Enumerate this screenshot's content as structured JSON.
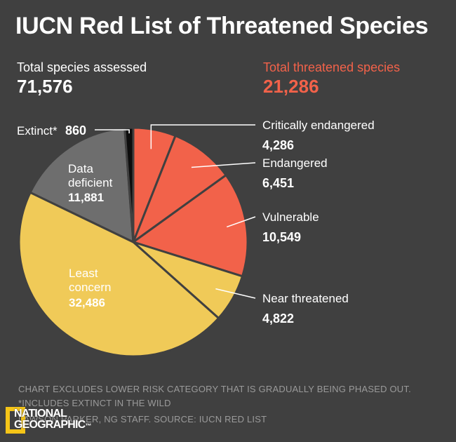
{
  "title": "IUCN Red List of Threatened Species",
  "totals": {
    "assessed_label": "Total species assessed",
    "assessed_value": "71,576",
    "threatened_label": "Total threatened species",
    "threatened_value": "21,286"
  },
  "colors": {
    "background": "#404040",
    "threatened": "#f2624a",
    "least_concern": "#f0ca58",
    "data_deficient": "#6e6e6e",
    "extinct": "#0d0d0d",
    "divider": "#404040"
  },
  "chart_data": {
    "type": "pie",
    "title": "IUCN Red List of Threatened Species",
    "slices": [
      {
        "label": "Critically endangered",
        "value": 4286,
        "display": "4,286",
        "color": "#f2624a"
      },
      {
        "label": "Endangered",
        "value": 6451,
        "display": "6,451",
        "color": "#f2624a"
      },
      {
        "label": "Vulnerable",
        "value": 10549,
        "display": "10,549",
        "color": "#f2624a"
      },
      {
        "label": "Near threatened",
        "value": 4822,
        "display": "4,822",
        "color": "#f0ca58"
      },
      {
        "label": "Least concern",
        "value": 32486,
        "display": "32,486",
        "color": "#f0ca58"
      },
      {
        "label": "Data deficient",
        "value": 11881,
        "display": "11,881",
        "color": "#6e6e6e"
      },
      {
        "label": "Extinct*",
        "value": 860,
        "display": "860",
        "color": "#0d0d0d"
      }
    ],
    "data_labels": {
      "extinct_label": "Extinct*",
      "extinct_value": "860",
      "data_deficient_line1": "Data",
      "data_deficient_line2": "deficient",
      "data_deficient_value": "11,881",
      "least_concern_line1": "Least",
      "least_concern_line2": "concern",
      "least_concern_value": "32,486"
    }
  },
  "footnotes": {
    "line1": "CHART EXCLUDES LOWER RISK CATEGORY THAT IS GRADUALLY BEING PHASED OUT.",
    "line2": "*INCLUDES EXTINCT IN THE WILD",
    "line3": "LAWSON PARKER, NG STAFF. SOURCE: IUCN RED LIST"
  },
  "logo": {
    "line1": "NATIONAL",
    "line2": "GEOGRAPHIC",
    "mark": "™"
  }
}
